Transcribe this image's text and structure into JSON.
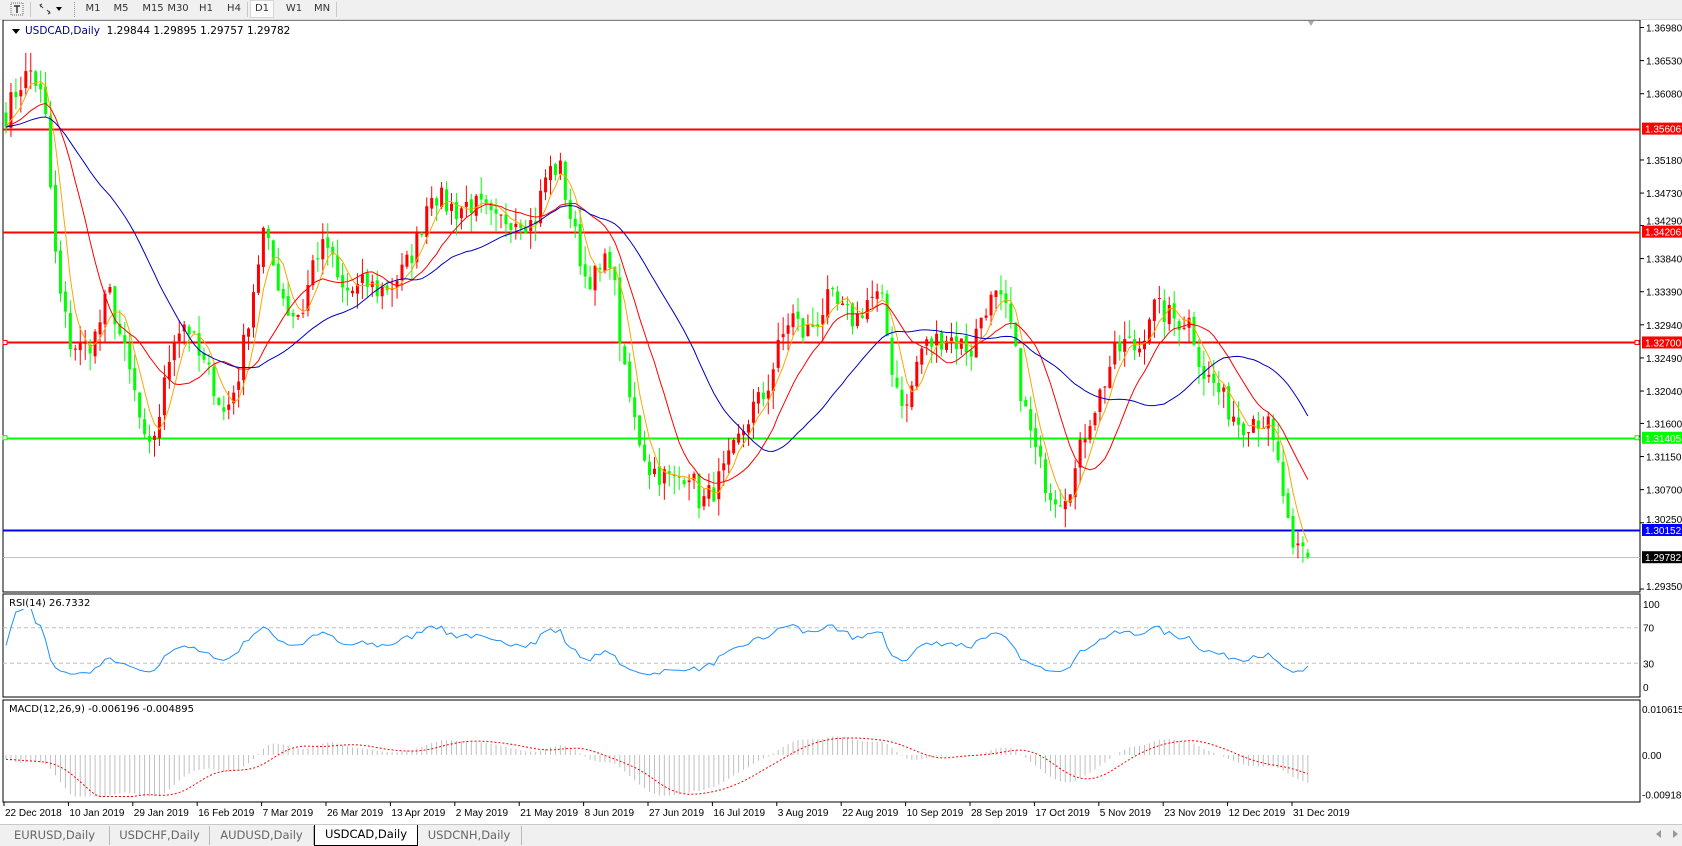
{
  "toolbar": {
    "icons": [
      "text-tool-icon",
      "arrows-tool-icon"
    ],
    "timeframes": [
      "M1",
      "M5",
      "M15",
      "M30",
      "H1",
      "H4",
      "D1",
      "W1",
      "MN"
    ],
    "active_timeframe": "D1"
  },
  "chart": {
    "symbol": "USDCAD,Daily",
    "open": "1.29844",
    "high": "1.29895",
    "low": "1.29757",
    "close": "1.29782"
  },
  "rsi": {
    "label": "RSI(14) 26.7332",
    "ticks": [
      "100",
      "70",
      "30",
      "0"
    ]
  },
  "macd": {
    "label": "MACD(12,26,9) -0.006196 -0.004895",
    "ticks": [
      "0.010615",
      "0.00",
      "-0.00918"
    ]
  },
  "tabs": [
    "EURUSD,Daily",
    "USDCHF,Daily",
    "AUDUSD,Daily",
    "USDCAD,Daily",
    "USDCNH,Daily"
  ],
  "active_tab": "USDCAD,Daily",
  "chart_data": {
    "type": "candlestick",
    "price_axis": {
      "ylim": [
        1.2935,
        1.3698
      ],
      "ticks": [
        "1.36980",
        "1.36530",
        "1.36080",
        "1.35180",
        "1.34730",
        "1.34290",
        "1.33840",
        "1.33390",
        "1.32940",
        "1.32490",
        "1.32040",
        "1.31600",
        "1.31150",
        "1.30700",
        "1.30250",
        "1.29350"
      ]
    },
    "up_color": "#ff0000",
    "down_color": "#00ff00",
    "levels": [
      {
        "price": "1.35606",
        "color": "#ff0000"
      },
      {
        "price": "1.34206",
        "color": "#ff0000"
      },
      {
        "price": "1.32700",
        "color": "#ff0000"
      },
      {
        "price": "1.31405",
        "color": "#00ff00"
      },
      {
        "price": "1.30152",
        "color": "#0000ff"
      }
    ],
    "current_price": {
      "price": "1.29782",
      "color": "#000000"
    },
    "moving_averages": [
      {
        "color": "#ffa500"
      },
      {
        "color": "#ff0000"
      },
      {
        "color": "#0000c0"
      }
    ],
    "segments": [
      {
        "label": "22 Dec 2018",
        "closes": [
          1.358,
          1.362,
          1.364,
          1.359,
          1.335
        ]
      },
      {
        "label": "10 Jan 2019",
        "closes": [
          1.327,
          1.326,
          1.328,
          1.334,
          1.327
        ]
      },
      {
        "label": "29 Jan 2019",
        "closes": [
          1.32,
          1.311,
          1.318,
          1.328,
          1.33
        ]
      },
      {
        "label": "16 Feb 2019",
        "closes": [
          1.325,
          1.322,
          1.317,
          1.322,
          1.332
        ]
      },
      {
        "label": "7 Mar 2019",
        "closes": [
          1.342,
          1.336,
          1.331,
          1.331,
          1.339
        ]
      },
      {
        "label": "26 Mar 2019",
        "closes": [
          1.34,
          1.334,
          1.334,
          1.335,
          1.334
        ]
      },
      {
        "label": "13 Apr 2019",
        "closes": [
          1.335,
          1.337,
          1.341,
          1.348,
          1.346
        ]
      },
      {
        "label": "2 May 2019",
        "closes": [
          1.345,
          1.346,
          1.345,
          1.343,
          1.344
        ]
      },
      {
        "label": "21 May 2019",
        "closes": [
          1.344,
          1.343,
          1.35,
          1.351,
          1.343
        ]
      },
      {
        "label": "8 Jun 2019",
        "closes": [
          1.336,
          1.336,
          1.339,
          1.323,
          1.315
        ]
      },
      {
        "label": "27 Jun 2019",
        "closes": [
          1.31,
          1.309,
          1.308,
          1.31,
          1.305
        ]
      },
      {
        "label": "16 Jul 2019",
        "closes": [
          1.307,
          1.31,
          1.314,
          1.318,
          1.32
        ]
      },
      {
        "label": "3 Aug 2019",
        "closes": [
          1.326,
          1.331,
          1.328,
          1.33,
          1.333
        ]
      },
      {
        "label": "22 Aug 2019",
        "closes": [
          1.331,
          1.33,
          1.333,
          1.333,
          1.322
        ]
      },
      {
        "label": "10 Sep 2019",
        "closes": [
          1.318,
          1.326,
          1.327,
          1.328,
          1.327
        ]
      },
      {
        "label": "28 Sep 2019",
        "closes": [
          1.326,
          1.332,
          1.333,
          1.33,
          1.319
        ]
      },
      {
        "label": "17 Oct 2019",
        "closes": [
          1.312,
          1.307,
          1.306,
          1.309,
          1.316
        ]
      },
      {
        "label": "5 Nov 2019",
        "closes": [
          1.32,
          1.325,
          1.327,
          1.326,
          1.332
        ]
      },
      {
        "label": "23 Nov 2019",
        "closes": [
          1.331,
          1.33,
          1.33,
          1.323,
          1.321
        ]
      },
      {
        "label": "12 Dec 2019",
        "closes": [
          1.318,
          1.316,
          1.317,
          1.316,
          1.309
        ]
      },
      {
        "label": "31 Dec 2019",
        "closes": [
          1.2975,
          1.2992,
          1.29782
        ]
      }
    ],
    "rsi_levels": [
      70,
      30
    ],
    "rsi_range": [
      0,
      100
    ],
    "macd_range": [
      -0.00918,
      0.010615
    ]
  }
}
